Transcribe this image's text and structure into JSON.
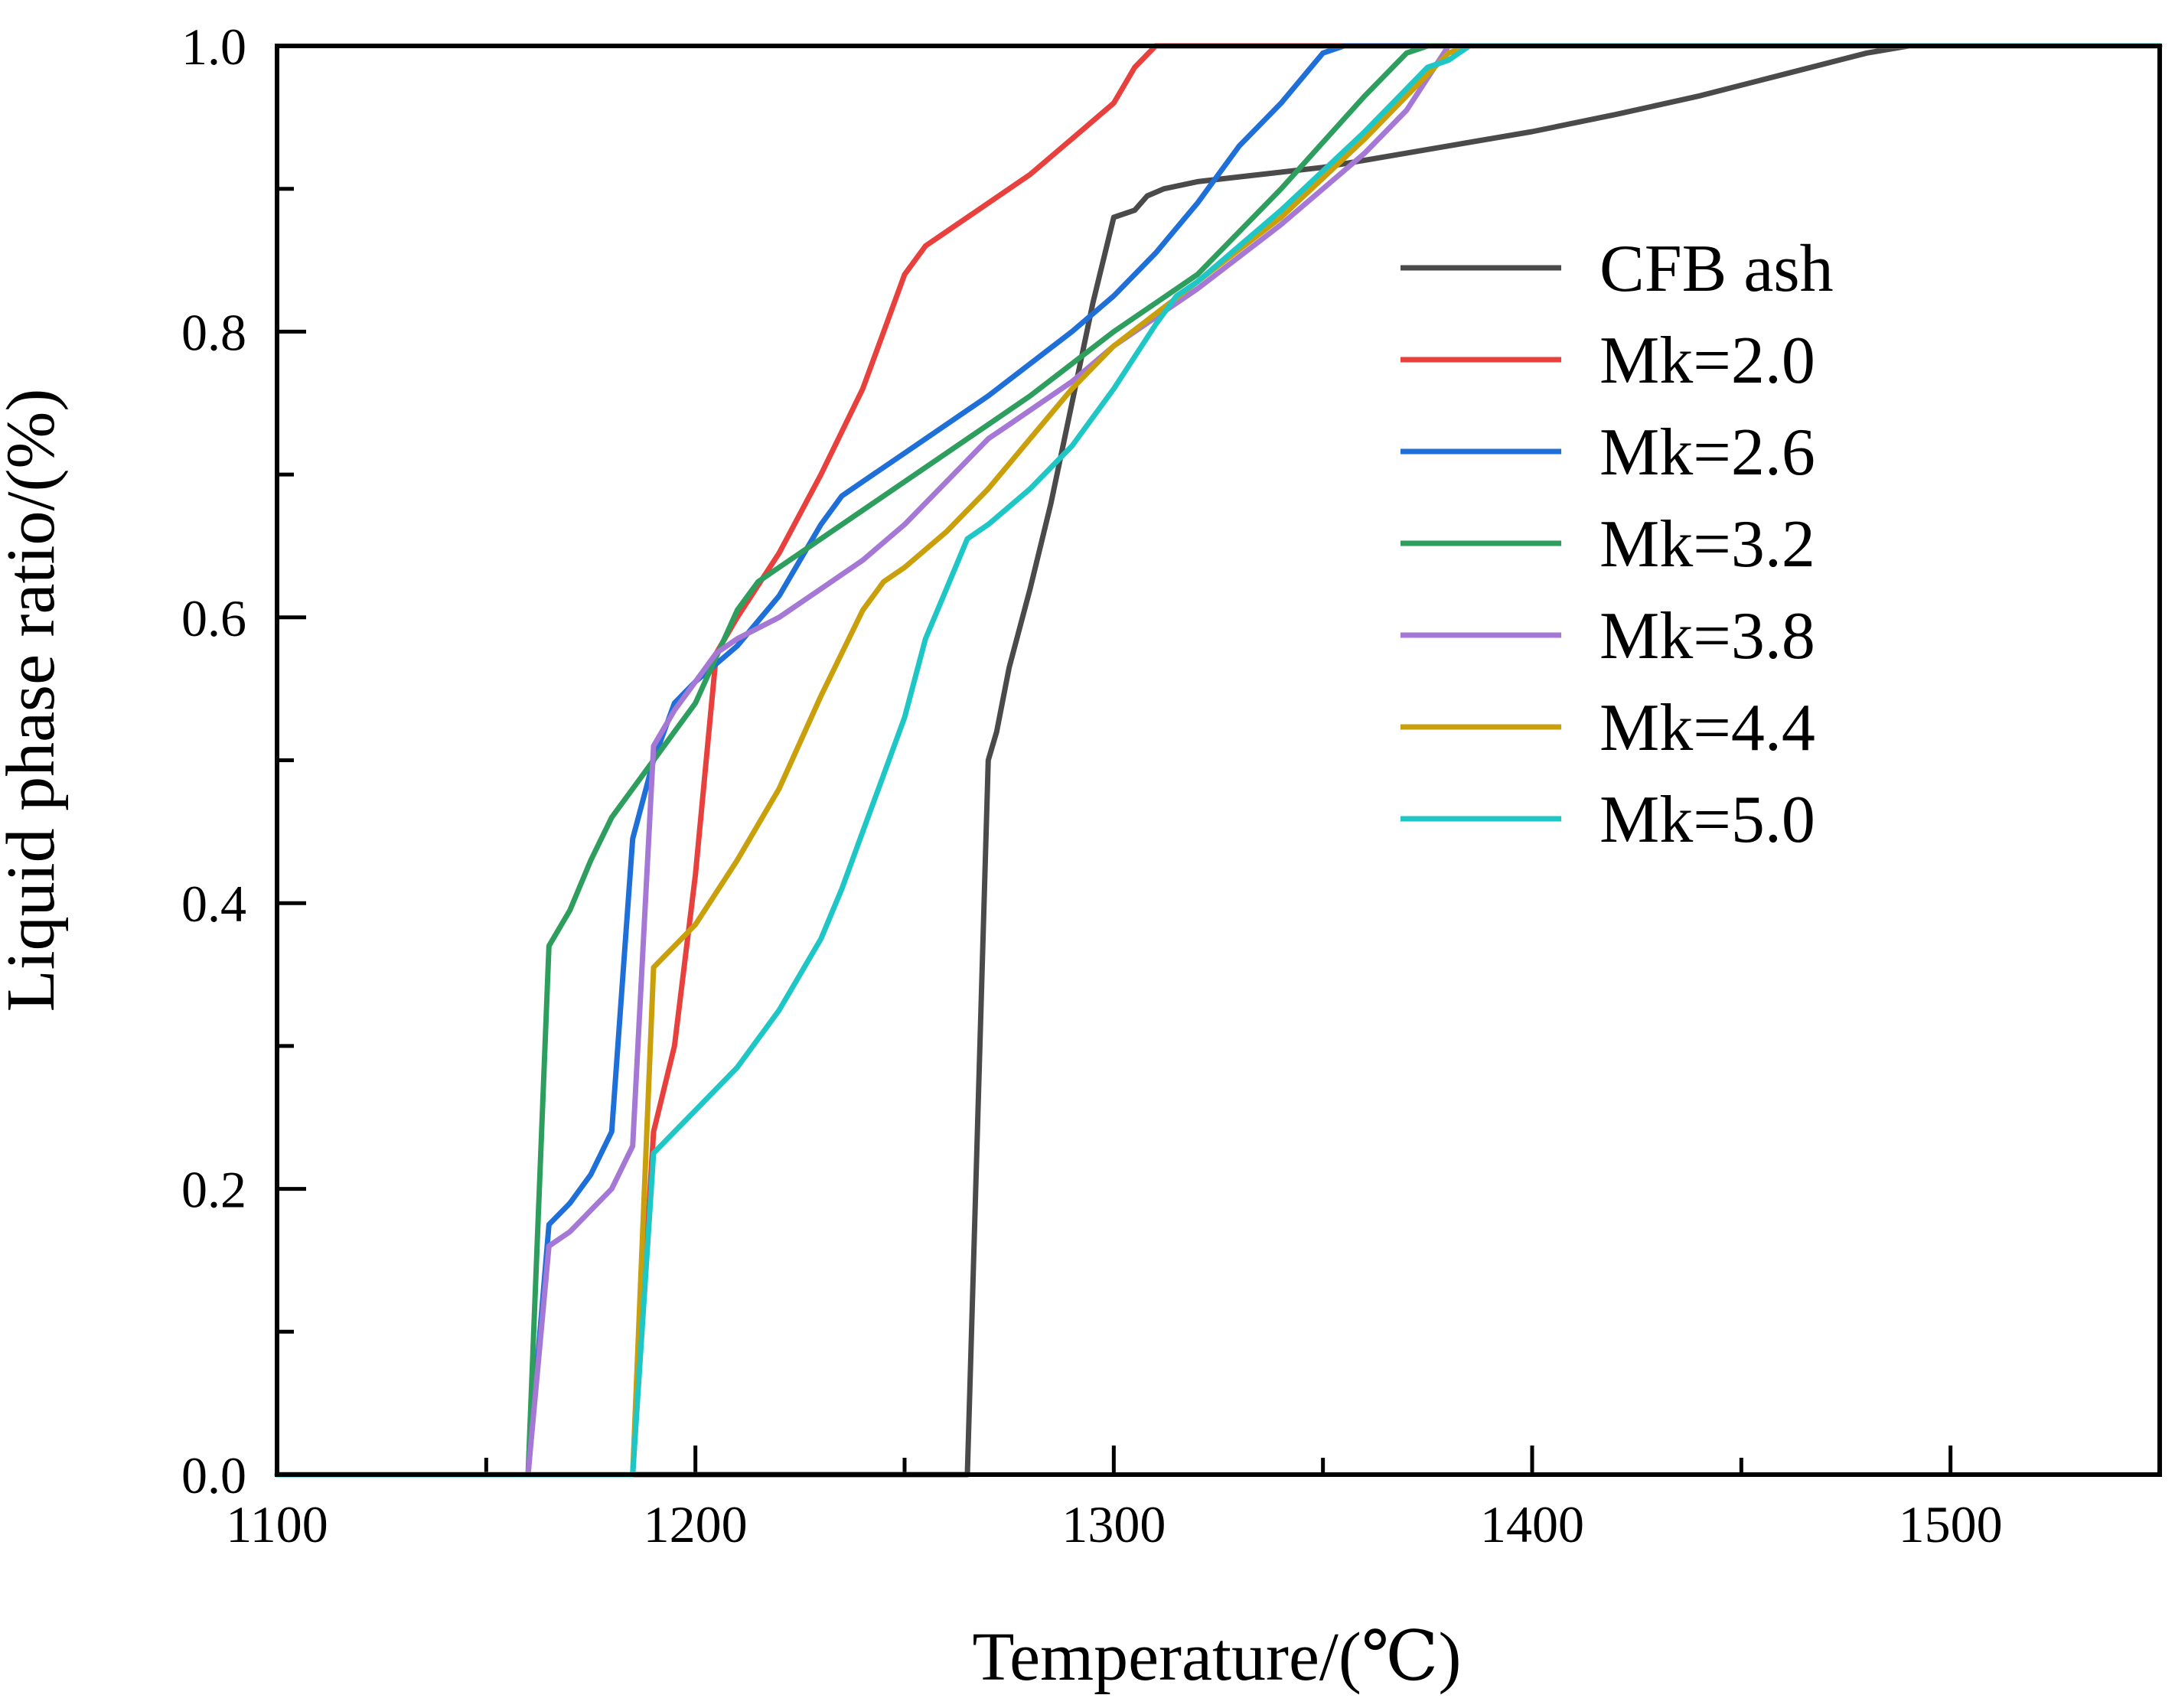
{
  "chart_data": {
    "type": "line",
    "title": "",
    "xlabel": "Temperature/(℃)",
    "ylabel": "Liquid phase ratio/(%)",
    "xlim": [
      1100,
      1550
    ],
    "ylim": [
      0,
      1
    ],
    "xticks": [
      1100,
      1200,
      1300,
      1400,
      1500
    ],
    "xtick_labels": [
      "1100",
      "1200",
      "1300",
      "1400",
      "1500"
    ],
    "yticks": [
      0,
      0.2,
      0.4,
      0.6,
      0.8,
      1.0
    ],
    "ytick_labels": [
      "0.0",
      "0.2",
      "0.4",
      "0.6",
      "0.8",
      "1.0"
    ],
    "x_minor_step": 50,
    "y_minor_step": 0.1,
    "grid": false,
    "legend_position": "right",
    "series": [
      {
        "name": "CFB ash",
        "color": "#4a4a4a",
        "x": [
          1100,
          1265,
          1268,
          1270,
          1272,
          1275,
          1280,
          1285,
          1290,
          1295,
          1300,
          1305,
          1308,
          1312,
          1320,
          1350,
          1380,
          1400,
          1420,
          1440,
          1460,
          1480,
          1490,
          1500,
          1550
        ],
        "y": [
          0,
          0,
          0.3,
          0.5,
          0.52,
          0.565,
          0.62,
          0.68,
          0.75,
          0.82,
          0.88,
          0.885,
          0.895,
          0.9,
          0.905,
          0.915,
          0.93,
          0.94,
          0.952,
          0.965,
          0.98,
          0.995,
          1.0,
          1.0,
          1.0
        ]
      },
      {
        "name": "Mk=2.0",
        "color": "#e8403c",
        "x": [
          1100,
          1185,
          1190,
          1195,
          1200,
          1205,
          1210,
          1220,
          1230,
          1240,
          1245,
          1250,
          1255,
          1260,
          1270,
          1280,
          1290,
          1300,
          1305,
          1310,
          1550
        ],
        "y": [
          0,
          0,
          0.24,
          0.3,
          0.42,
          0.575,
          0.6,
          0.645,
          0.7,
          0.76,
          0.8,
          0.84,
          0.86,
          0.87,
          0.89,
          0.91,
          0.935,
          0.96,
          0.985,
          1.0,
          1.0
        ]
      },
      {
        "name": "Mk=2.6",
        "color": "#1f6fd8",
        "x": [
          1100,
          1160,
          1165,
          1170,
          1175,
          1180,
          1185,
          1190,
          1195,
          1200,
          1210,
          1220,
          1230,
          1235,
          1240,
          1250,
          1270,
          1290,
          1300,
          1310,
          1320,
          1330,
          1340,
          1350,
          1355,
          1550
        ],
        "y": [
          0,
          0,
          0.175,
          0.19,
          0.21,
          0.24,
          0.445,
          0.5,
          0.54,
          0.555,
          0.58,
          0.615,
          0.665,
          0.685,
          0.695,
          0.715,
          0.755,
          0.8,
          0.825,
          0.855,
          0.89,
          0.93,
          0.96,
          0.995,
          1.0,
          1.0
        ]
      },
      {
        "name": "Mk=3.2",
        "color": "#2e9e5e",
        "x": [
          1100,
          1160,
          1165,
          1170,
          1175,
          1180,
          1190,
          1200,
          1210,
          1215,
          1220,
          1230,
          1240,
          1260,
          1280,
          1300,
          1320,
          1340,
          1360,
          1370,
          1375,
          1550
        ],
        "y": [
          0,
          0,
          0.37,
          0.395,
          0.43,
          0.46,
          0.5,
          0.54,
          0.605,
          0.625,
          0.635,
          0.655,
          0.675,
          0.715,
          0.755,
          0.8,
          0.84,
          0.9,
          0.965,
          0.995,
          1.0,
          1.0
        ]
      },
      {
        "name": "Mk=3.8",
        "color": "#a678d6",
        "x": [
          1100,
          1160,
          1165,
          1170,
          1175,
          1180,
          1185,
          1190,
          1195,
          1200,
          1205,
          1210,
          1220,
          1230,
          1240,
          1250,
          1260,
          1270,
          1275,
          1290,
          1300,
          1320,
          1340,
          1360,
          1370,
          1380,
          1550
        ],
        "y": [
          0,
          0,
          0.16,
          0.17,
          0.185,
          0.2,
          0.23,
          0.51,
          0.535,
          0.555,
          0.575,
          0.585,
          0.6,
          0.62,
          0.64,
          0.665,
          0.695,
          0.725,
          0.735,
          0.765,
          0.79,
          0.83,
          0.875,
          0.925,
          0.955,
          1.0,
          1.0
        ]
      },
      {
        "name": "Mk=4.4",
        "color": "#c9a00c",
        "x": [
          1100,
          1185,
          1190,
          1200,
          1210,
          1220,
          1230,
          1240,
          1245,
          1250,
          1260,
          1270,
          1280,
          1290,
          1300,
          1320,
          1340,
          1360,
          1370,
          1380,
          1385,
          1550
        ],
        "y": [
          0,
          0,
          0.355,
          0.385,
          0.43,
          0.48,
          0.545,
          0.605,
          0.625,
          0.635,
          0.66,
          0.69,
          0.725,
          0.76,
          0.79,
          0.835,
          0.88,
          0.935,
          0.965,
          0.995,
          1.0,
          1.0
        ]
      },
      {
        "name": "Mk=5.0",
        "color": "#1fc6c6",
        "x": [
          1100,
          1185,
          1190,
          1200,
          1210,
          1220,
          1230,
          1235,
          1240,
          1245,
          1250,
          1255,
          1260,
          1265,
          1270,
          1280,
          1290,
          1300,
          1310,
          1315,
          1320,
          1340,
          1360,
          1375,
          1380,
          1385,
          1550
        ],
        "y": [
          0,
          0,
          0.225,
          0.255,
          0.285,
          0.325,
          0.375,
          0.41,
          0.45,
          0.49,
          0.53,
          0.585,
          0.62,
          0.655,
          0.665,
          0.69,
          0.72,
          0.76,
          0.805,
          0.825,
          0.835,
          0.885,
          0.94,
          0.985,
          0.99,
          1.0,
          1.0
        ]
      }
    ]
  }
}
